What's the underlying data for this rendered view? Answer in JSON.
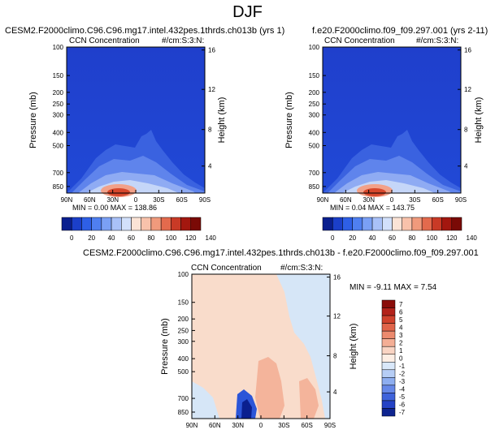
{
  "page": {
    "title": "DJF"
  },
  "panels": [
    {
      "case_title": "CESM2.F2000climo.C96.C96.mg17.intel.432pes.1thrds.ch013b (yrs 1)",
      "variable": "CCN Concentration",
      "units": "#/cm:S:3:N:",
      "stats": "MIN =  0.00  MAX = 138.86"
    },
    {
      "case_title": "f.e20.F2000climo.f09_f09.297.001 (yrs 2-11)",
      "variable": "CCN Concentration",
      "units": "#/cm:S:3:N:",
      "stats": "MIN =  0.04  MAX = 143.75"
    },
    {
      "case_title": "CESM2.F2000climo.C96.C96.mg17.intel.432pes.1thrds.ch013b - f.e20.F2000climo.f09_f09.297.001",
      "variable": "CCN Concentration",
      "units": "#/cm:S:3:N:",
      "stats": "MIN = -9.11  MAX =   7.54"
    }
  ],
  "colors": {
    "blue_dark": "#1d3fd0",
    "diff_bg": "#d6e6f7",
    "diff_pos": "#f9dccb",
    "red": "#d8482c"
  },
  "chart_data": [
    {
      "type": "heatmap",
      "ylabel": "Pressure (mb)",
      "ylabel_right": "Height (km)",
      "x_ticks": [
        "90N",
        "60N",
        "30N",
        "0",
        "30S",
        "60S",
        "90S"
      ],
      "y_ticks": [
        "100",
        "150",
        "200",
        "250",
        "300",
        "400",
        "500",
        "700",
        "850"
      ],
      "y_ticks_right": [
        "16",
        "12",
        "8",
        "4"
      ],
      "colorbar": {
        "levels": [
          "0",
          "20",
          "40",
          "60",
          "80",
          "100",
          "120",
          "140"
        ],
        "orientation": "horizontal"
      },
      "min": 0.0,
      "max": 138.86
    },
    {
      "type": "heatmap",
      "ylabel": "Pressure (mb)",
      "ylabel_right": "Height (km)",
      "x_ticks": [
        "90N",
        "60N",
        "30N",
        "0",
        "30S",
        "60S",
        "90S"
      ],
      "y_ticks": [
        "100",
        "150",
        "200",
        "250",
        "300",
        "400",
        "500",
        "700",
        "850"
      ],
      "y_ticks_right": [
        "16",
        "12",
        "8",
        "4"
      ],
      "colorbar": {
        "levels": [
          "0",
          "20",
          "40",
          "60",
          "80",
          "100",
          "120",
          "140"
        ],
        "orientation": "horizontal"
      },
      "min": 0.04,
      "max": 143.75
    },
    {
      "type": "heatmap",
      "ylabel": "Pressure (mb)",
      "ylabel_right": "Height (km)",
      "x_ticks": [
        "90N",
        "60N",
        "30N",
        "0",
        "30S",
        "60S",
        "90S"
      ],
      "y_ticks": [
        "100",
        "150",
        "200",
        "250",
        "300",
        "400",
        "500",
        "700",
        "850"
      ],
      "y_ticks_right": [
        "16",
        "12",
        "8",
        "4"
      ],
      "colorbar": {
        "levels": [
          "7",
          "6",
          "5",
          "4",
          "3",
          "2",
          "1",
          "0",
          "-1",
          "-2",
          "-3",
          "-4",
          "-5",
          "-6",
          "-7"
        ],
        "orientation": "vertical"
      },
      "min": -9.11,
      "max": 7.54
    }
  ]
}
